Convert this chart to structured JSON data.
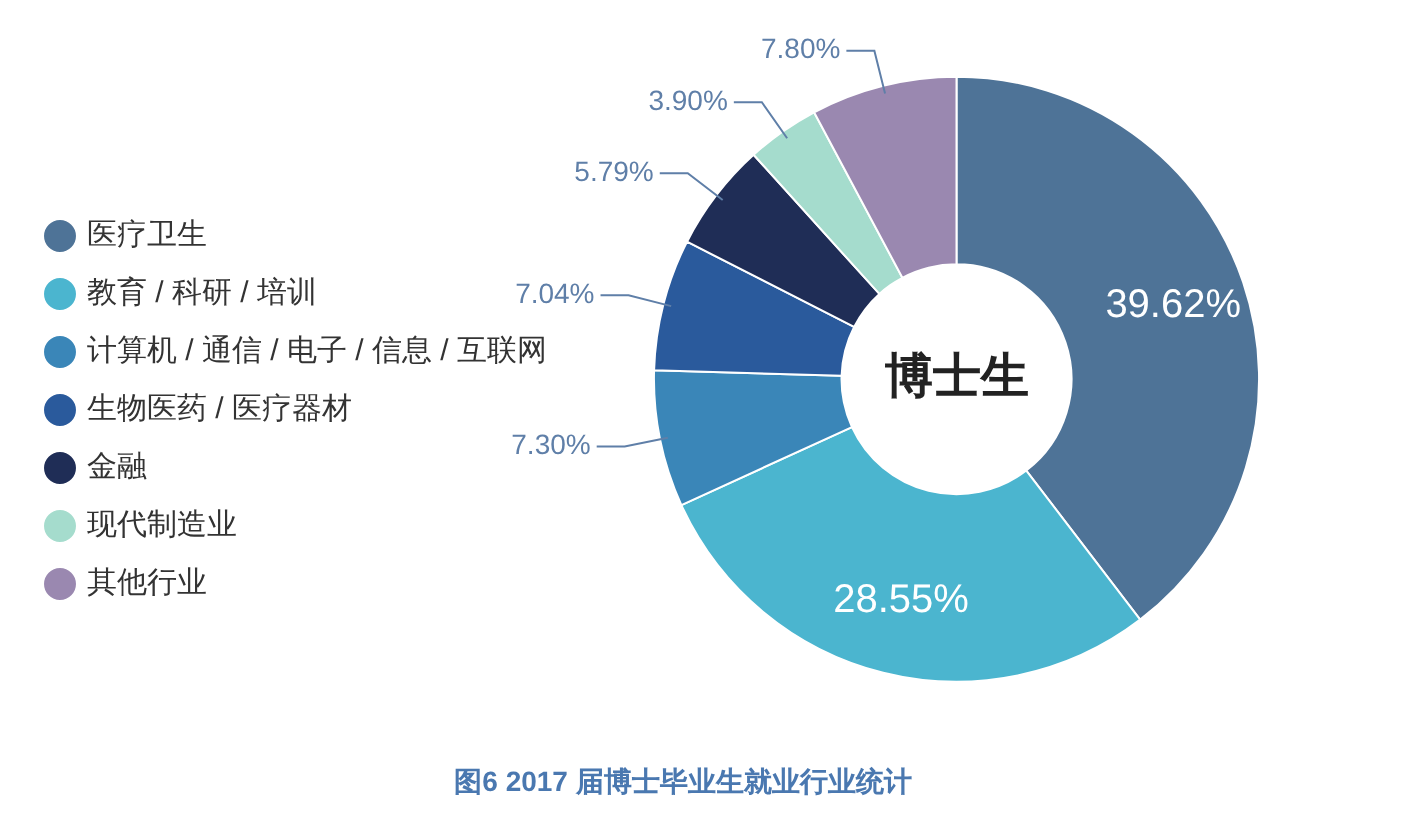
{
  "chart_data": {
    "type": "donut",
    "title": "图6 2017 届博士毕业生就业行业统计",
    "categories": [
      "医疗卫生",
      "教育 / 科研 / 培训",
      "计算机 / 通信 / 电子 / 信息 / 互联网",
      "生物医药 / 医疗器材",
      "金融",
      "现代制造业",
      "其他行业"
    ],
    "values": [
      39.62,
      28.55,
      7.3,
      7.04,
      5.79,
      3.9,
      7.8
    ],
    "colors": [
      "#4e7397",
      "#4bb5cf",
      "#3a86b8",
      "#2a5a9c",
      "#1f2d56",
      "#a5dccd",
      "#9a88b0"
    ],
    "value_labels": [
      "39.62%",
      "28.55%",
      "7.30%",
      "7.04%",
      "5.79%",
      "3.90%",
      "7.80%"
    ],
    "annotations": [
      "博士生"
    ],
    "legend": "left"
  }
}
